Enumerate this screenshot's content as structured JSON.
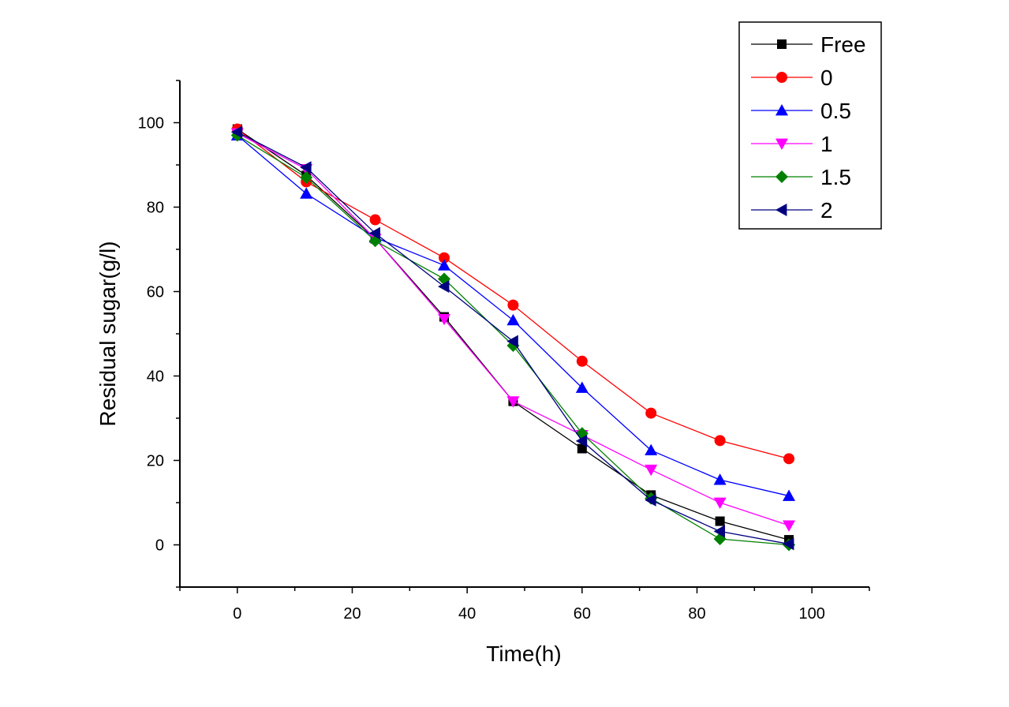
{
  "chart_data": {
    "type": "line",
    "title": "",
    "xlabel": "Time(h)",
    "ylabel": "Residual sugar(g/l)",
    "xlim": [
      -10,
      110
    ],
    "ylim": [
      -10,
      110
    ],
    "x_ticks": [
      0,
      20,
      40,
      60,
      80,
      100
    ],
    "y_ticks": [
      0,
      20,
      40,
      60,
      80,
      100
    ],
    "x_tick_labels": [
      "0",
      "20",
      "40",
      "60",
      "80",
      "100"
    ],
    "y_tick_labels": [
      "0",
      "20",
      "40",
      "60",
      "80",
      "100"
    ],
    "grid": false,
    "legend_position": "top-right",
    "x": [
      0,
      12,
      24,
      36,
      48,
      60,
      72,
      84,
      96
    ],
    "series": [
      {
        "name": "Free",
        "marker": "square",
        "color": "#000000",
        "values": [
          98.5,
          87.5,
          72.5,
          54,
          34,
          22.8,
          11.8,
          5.6,
          1.2
        ]
      },
      {
        "name": "0",
        "marker": "circle",
        "color": "#ff0000",
        "values": [
          98.5,
          86,
          77,
          68,
          56.8,
          43.5,
          31.2,
          24.7,
          20.4
        ]
      },
      {
        "name": "0.5",
        "marker": "triangle-up",
        "color": "#0000ff",
        "values": [
          97,
          83.2,
          72.8,
          66.2,
          53.2,
          37.2,
          22.4,
          15.4,
          11.6
        ]
      },
      {
        "name": "1",
        "marker": "triangle-down",
        "color": "#ff00ff",
        "values": [
          97.5,
          89,
          72.5,
          53.5,
          34,
          26,
          17.8,
          10,
          4.6
        ]
      },
      {
        "name": "1.5",
        "marker": "diamond",
        "color": "#008000",
        "values": [
          97,
          87,
          72,
          63,
          47.2,
          26.4,
          11,
          1.4,
          0
        ]
      },
      {
        "name": "2",
        "marker": "triangle-left",
        "color": "#000080",
        "values": [
          97.8,
          89.4,
          73.8,
          61.2,
          48.2,
          24.6,
          10.6,
          3.2,
          0.2
        ]
      }
    ]
  }
}
